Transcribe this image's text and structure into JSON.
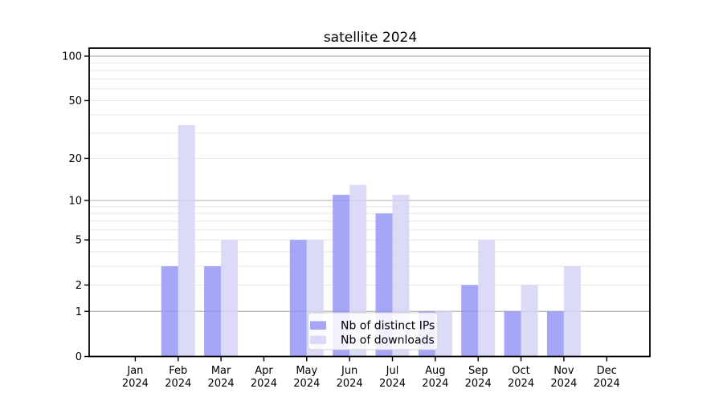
{
  "chart_data": {
    "type": "bar",
    "title": "satellite 2024",
    "year": "2024",
    "categories": [
      "Jan",
      "Feb",
      "Mar",
      "Apr",
      "May",
      "Jun",
      "Jul",
      "Aug",
      "Sep",
      "Oct",
      "Nov",
      "Dec"
    ],
    "series": [
      {
        "name": "Nb of distinct IPs",
        "color": "#a6a6f6",
        "fill": "rgba(144,144,244,0.8)",
        "values": [
          0,
          3,
          3,
          0,
          5,
          11,
          8,
          1,
          2,
          1,
          1,
          0
        ]
      },
      {
        "name": "Nb of downloads",
        "color": "#dcdcf6",
        "fill": "rgba(210,210,245,0.8)",
        "values": [
          0,
          34,
          5,
          0,
          5,
          13,
          11,
          1,
          5,
          2,
          3,
          0
        ]
      }
    ],
    "yticks": [
      {
        "label": "0",
        "value": 0
      },
      {
        "label": "1",
        "value": 1
      },
      {
        "label": "2",
        "value": 2
      },
      {
        "label": "5",
        "value": 5
      },
      {
        "label": "10",
        "value": 10
      },
      {
        "label": "20",
        "value": 20
      },
      {
        "label": "50",
        "value": 50
      },
      {
        "label": "100",
        "value": 100
      }
    ],
    "scale": "log10(value+1)",
    "ylim": [
      0,
      113
    ],
    "grid": {
      "minor_values": [
        2,
        3,
        4,
        5,
        6,
        7,
        8,
        9,
        20,
        30,
        40,
        50,
        60,
        70,
        80,
        90
      ],
      "major_values": [
        1,
        10,
        100
      ],
      "minor_color": "#e7e7e7",
      "major_color": "#b4b4b4"
    },
    "legend": {
      "position": "lower center",
      "entries": [
        "Nb of distinct IPs",
        "Nb of downloads"
      ],
      "border_color": "#cfcfcf",
      "background": "#ffffff"
    },
    "axis_color": "#000000",
    "background": "#ffffff"
  }
}
